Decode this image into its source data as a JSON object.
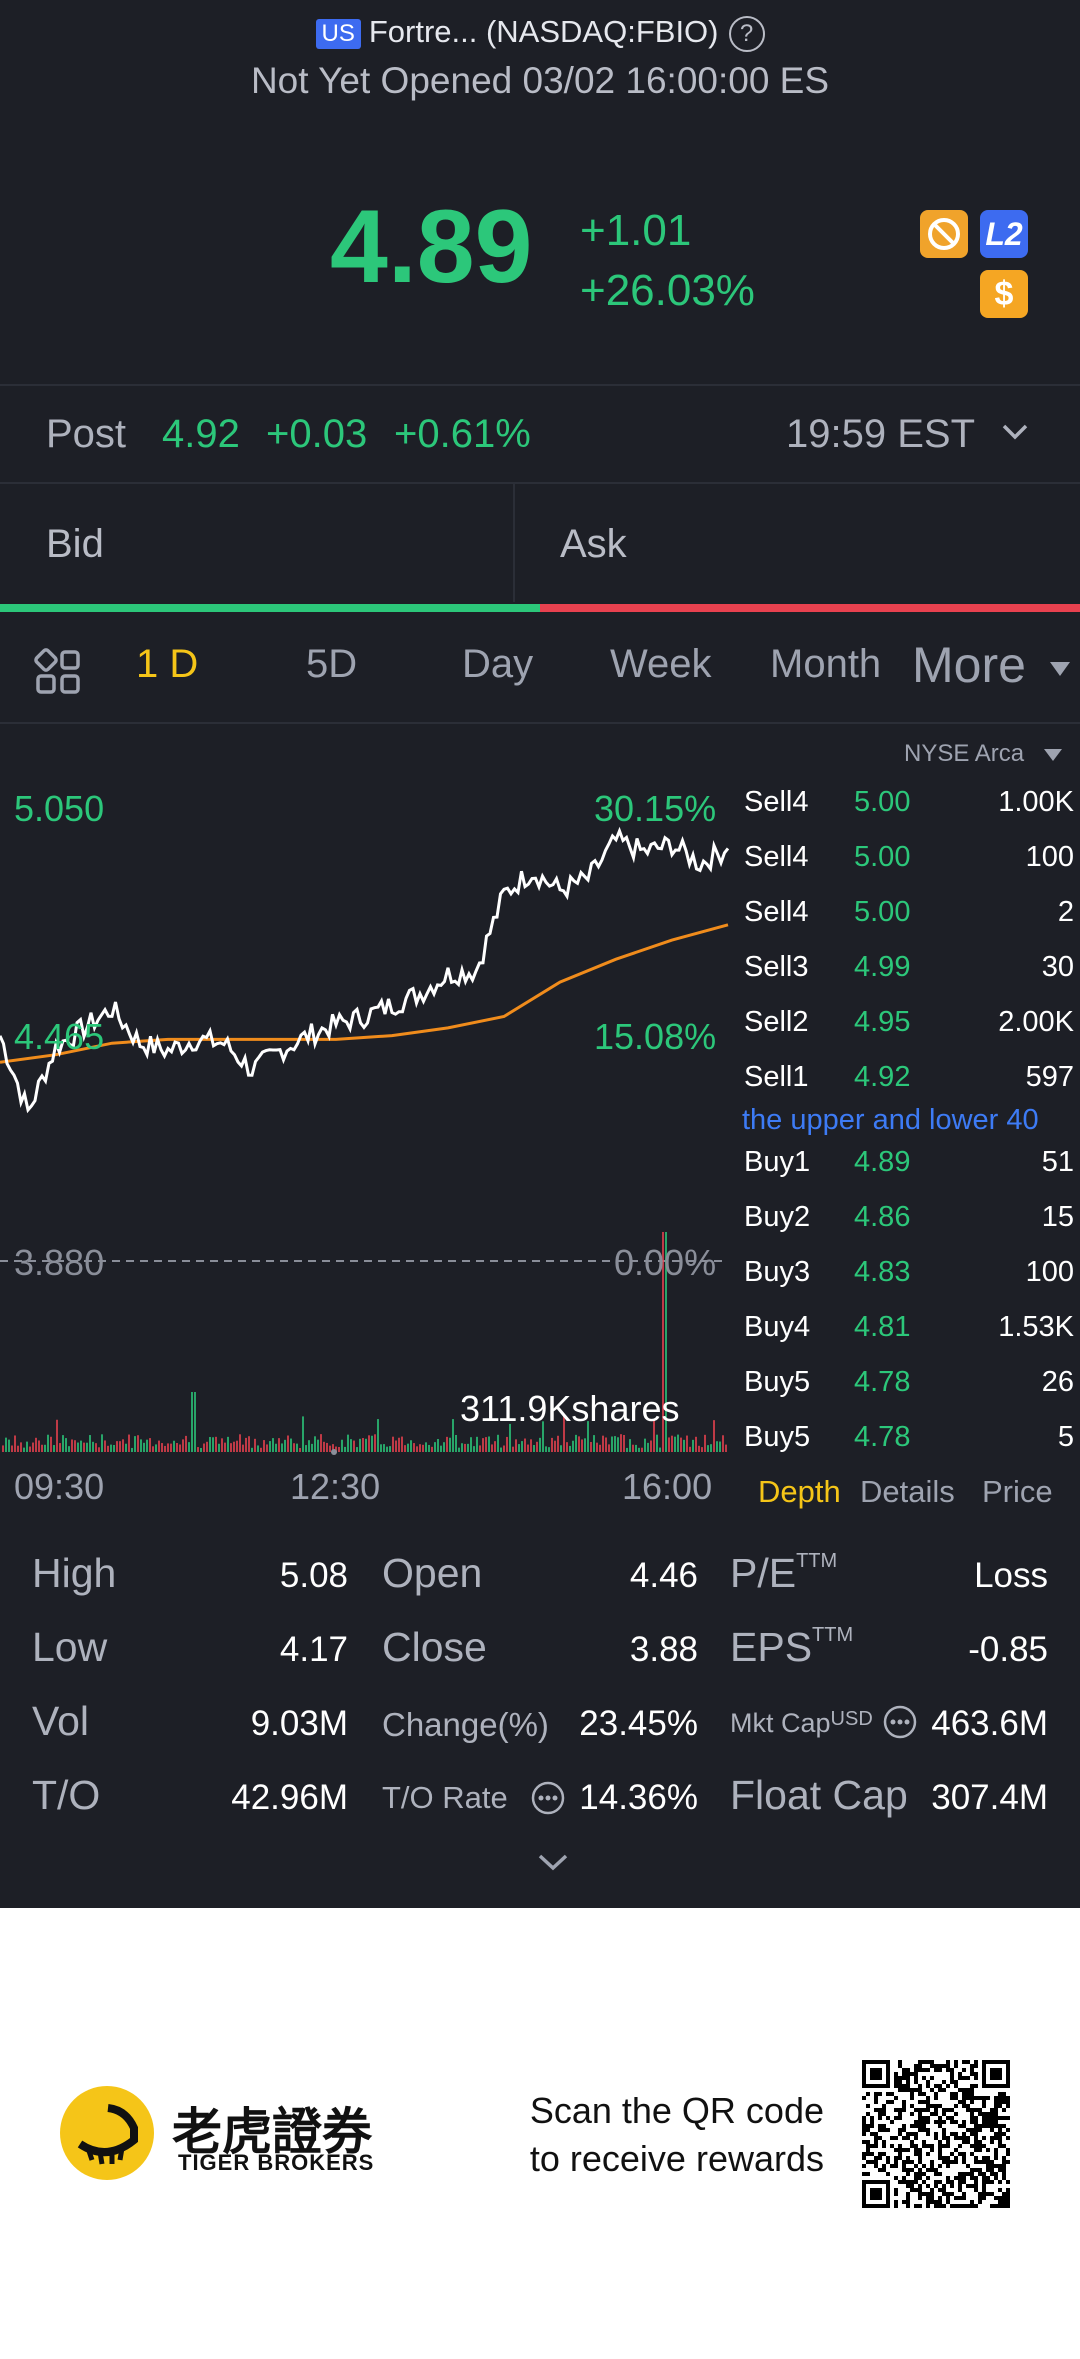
{
  "header": {
    "market_badge": "US",
    "title": "Fortre... (NASDAQ:FBIO)",
    "help_icon": "question-circle-icon",
    "status": "Not Yet Opened 03/02 16:00:00 ES"
  },
  "quote": {
    "price": "4.89",
    "change": "+1.01",
    "change_pct": "+26.03%",
    "badges": [
      {
        "icon": "no-short-icon",
        "color": "#f0a32b"
      },
      {
        "icon": "level2-icon",
        "label": "L2",
        "color": "#3d6bf0"
      },
      {
        "icon": "dollar-icon",
        "label": "$",
        "color": "#f5a623"
      }
    ]
  },
  "post_market": {
    "label": "Post",
    "price": "4.92",
    "change": "+0.03",
    "change_pct": "+0.61%",
    "time": "19:59 EST"
  },
  "bid_ask": {
    "bid_label": "Bid",
    "ask_label": "Ask",
    "bid_ratio": 0.5
  },
  "tabs": {
    "items": [
      "1 D",
      "5D",
      "Day",
      "Week",
      "Month"
    ],
    "active": "1 D",
    "more_label": "More",
    "active_color": "#f5c518"
  },
  "chart": {
    "exchange": "NYSE Arca",
    "y_labels": {
      "high": "5.050",
      "mid": "4.465",
      "base": "3.880"
    },
    "pct_labels": {
      "high": "30.15%",
      "mid": "15.08%",
      "base": "0.00%"
    },
    "x_labels": [
      "09:30",
      "12:30",
      "16:00"
    ],
    "volume_label": "311.9Kshares"
  },
  "chart_data": {
    "type": "line",
    "title": "",
    "x_range": [
      "09:30",
      "16:00"
    ],
    "ylim": [
      3.88,
      5.05
    ],
    "baseline": 3.88,
    "series": [
      {
        "x": [
          "09:30",
          "09:45",
          "10:00",
          "10:15",
          "10:30",
          "10:45",
          "11:00",
          "11:15",
          "11:30",
          "11:45",
          "12:00",
          "12:15",
          "12:30",
          "12:45",
          "13:00",
          "13:15",
          "13:30",
          "13:45",
          "14:00",
          "14:15",
          "14:30",
          "14:45",
          "15:00",
          "15:15",
          "15:30",
          "15:45",
          "16:00"
        ],
        "values": [
          4.47,
          4.27,
          4.44,
          4.49,
          4.54,
          4.45,
          4.43,
          4.46,
          4.45,
          4.38,
          4.43,
          4.47,
          4.5,
          4.52,
          4.55,
          4.58,
          4.63,
          4.64,
          4.84,
          4.9,
          4.85,
          4.88,
          4.98,
          4.95,
          4.97,
          4.92,
          4.96
        ]
      },
      {
        "x": [
          "09:30",
          "10:00",
          "10:30",
          "11:00",
          "11:30",
          "12:00",
          "12:30",
          "13:00",
          "13:30",
          "14:00",
          "14:30",
          "15:00",
          "15:30",
          "16:00"
        ],
        "values": [
          4.4,
          4.42,
          4.45,
          4.46,
          4.46,
          4.46,
          4.46,
          4.47,
          4.49,
          4.52,
          4.61,
          4.67,
          4.72,
          4.76
        ]
      }
    ]
  },
  "depth": {
    "rows": [
      {
        "label": "Sell4",
        "price": "5.00",
        "size": "1.00K"
      },
      {
        "label": "Sell4",
        "price": "5.00",
        "size": "100"
      },
      {
        "label": "Sell4",
        "price": "5.00",
        "size": "2"
      },
      {
        "label": "Sell3",
        "price": "4.99",
        "size": "30"
      },
      {
        "label": "Sell2",
        "price": "4.95",
        "size": "2.00K"
      },
      {
        "label": "Sell1",
        "price": "4.92",
        "size": "597"
      }
    ],
    "notice": "the upper and lower 40",
    "buy_rows": [
      {
        "label": "Buy1",
        "price": "4.89",
        "size": "51"
      },
      {
        "label": "Buy2",
        "price": "4.86",
        "size": "15"
      },
      {
        "label": "Buy3",
        "price": "4.83",
        "size": "100"
      },
      {
        "label": "Buy4",
        "price": "4.81",
        "size": "1.53K"
      },
      {
        "label": "Buy5",
        "price": "4.78",
        "size": "26"
      },
      {
        "label": "Buy5",
        "price": "4.78",
        "size": "5"
      }
    ],
    "tabs": [
      "Depth",
      "Details",
      "Price"
    ]
  },
  "stats": {
    "high_label": "High",
    "high": "5.08",
    "low_label": "Low",
    "low": "4.17",
    "vol_label": "Vol",
    "vol": "9.03M",
    "to_label": "T/O",
    "to": "42.96M",
    "open_label": "Open",
    "open": "4.46",
    "close_label": "Close",
    "close": "3.88",
    "change_label": "Change(%)",
    "change": "23.45%",
    "torate_label": "T/O Rate",
    "torate": "14.36%",
    "pe_label": "P/E",
    "pe_sup": "TTM",
    "pe": "Loss",
    "eps_label": "EPS",
    "eps_sup": "TTM",
    "eps": "-0.85",
    "mktcap_label": "Mkt Cap",
    "mktcap_sup": "USD",
    "mktcap": "463.6M",
    "floatcap_label": "Float Cap",
    "floatcap": "307.4M"
  },
  "footer": {
    "brand_cn": "老虎證券",
    "brand_en": "TIGER BROKERS",
    "qr_line1": "Scan the QR code",
    "qr_line2": "to receive rewards"
  }
}
